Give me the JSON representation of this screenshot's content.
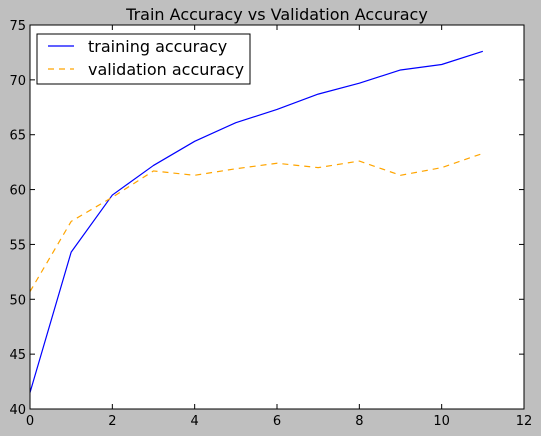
{
  "chart_data": {
    "type": "line",
    "title": "Train Accuracy vs Validation Accuracy",
    "xlabel": "",
    "ylabel": "",
    "xlim": [
      0,
      12
    ],
    "ylim": [
      40,
      75
    ],
    "xticks": [
      0,
      2,
      4,
      6,
      8,
      10,
      12
    ],
    "yticks": [
      40,
      45,
      50,
      55,
      60,
      65,
      70,
      75
    ],
    "grid": false,
    "legend_position": "top-left",
    "x": [
      0,
      1,
      2,
      3,
      4,
      5,
      6,
      7,
      8,
      9,
      10,
      11
    ],
    "series": [
      {
        "name": "training accuracy",
        "color": "#0000ff",
        "line_style": "solid",
        "values": [
          41.5,
          54.3,
          59.5,
          62.2,
          64.4,
          66.1,
          67.3,
          68.7,
          69.7,
          70.9,
          71.4,
          72.6
        ]
      },
      {
        "name": "validation accuracy",
        "color": "#ffa500",
        "line_style": "dashed",
        "values": [
          50.7,
          57.1,
          59.3,
          61.7,
          61.3,
          61.9,
          62.4,
          62.0,
          62.6,
          61.3,
          62.0,
          63.3
        ]
      }
    ]
  }
}
